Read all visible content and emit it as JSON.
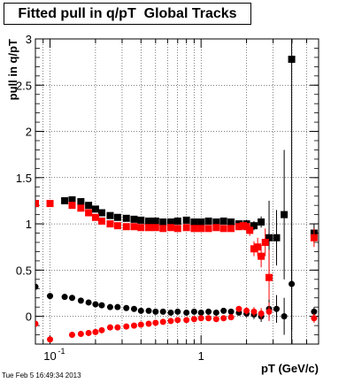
{
  "title": "Fitted pull in q/pT  Global Tracks",
  "footer": "Tue Feb  5 16:49:34 2013",
  "chart_data": {
    "type": "scatter",
    "xlabel": "pT (GeV/c)",
    "ylabel": "pull in q/pT",
    "xscale": "log",
    "xlim": [
      0.08,
      6.0
    ],
    "ylim": [
      -0.3,
      3.0
    ],
    "grid": true,
    "x_tick_labels": [
      {
        "value": 0.1,
        "label": "10",
        "sup": "-1"
      },
      {
        "value": 1,
        "label": "1"
      }
    ],
    "y_tick_labels": [
      "0",
      "0.5",
      "1",
      "1.5",
      "2",
      "2.5",
      "3"
    ],
    "series": [
      {
        "color": "#000000",
        "marker": "square",
        "x": [
          0.08,
          0.125,
          0.14,
          0.16,
          0.18,
          0.2,
          0.22,
          0.25,
          0.28,
          0.32,
          0.36,
          0.4,
          0.45,
          0.5,
          0.56,
          0.63,
          0.7,
          0.8,
          0.9,
          1.0,
          1.12,
          1.26,
          1.41,
          1.58,
          1.78,
          2.0,
          2.24,
          2.5,
          2.82,
          3.16,
          3.55,
          3.98,
          5.6
        ],
        "y": [
          1.22,
          1.25,
          1.26,
          1.24,
          1.2,
          1.16,
          1.12,
          1.09,
          1.07,
          1.06,
          1.05,
          1.04,
          1.03,
          1.03,
          1.02,
          1.02,
          1.03,
          1.04,
          1.02,
          1.02,
          1.03,
          1.02,
          1.03,
          1.02,
          1.0,
          1.0,
          0.98,
          1.02,
          0.85,
          0.85,
          1.1,
          2.78,
          0.9
        ],
        "yerr": [
          0.02,
          0.01,
          0.01,
          0.01,
          0.01,
          0.01,
          0.01,
          0.01,
          0.01,
          0.01,
          0.01,
          0.01,
          0.01,
          0.01,
          0.01,
          0.01,
          0.01,
          0.01,
          0.01,
          0.01,
          0.02,
          0.02,
          0.02,
          0.02,
          0.03,
          0.04,
          0.05,
          0.06,
          0.4,
          0.3,
          0.7,
          3.5,
          0.1
        ]
      },
      {
        "color": "#ff0000",
        "marker": "square",
        "x": [
          0.08,
          0.1,
          0.14,
          0.16,
          0.18,
          0.2,
          0.22,
          0.25,
          0.28,
          0.32,
          0.36,
          0.4,
          0.45,
          0.5,
          0.56,
          0.63,
          0.7,
          0.8,
          0.9,
          1.0,
          1.12,
          1.26,
          1.41,
          1.58,
          1.78,
          1.9,
          2.0,
          2.1,
          2.24,
          2.37,
          2.5,
          2.66,
          2.82,
          5.6
        ],
        "y": [
          1.22,
          1.22,
          1.2,
          1.17,
          1.12,
          1.07,
          1.03,
          1.0,
          0.98,
          0.97,
          0.97,
          0.96,
          0.96,
          0.96,
          0.95,
          0.96,
          0.95,
          0.96,
          0.95,
          0.95,
          0.95,
          0.96,
          0.95,
          0.95,
          0.97,
          0.98,
          0.97,
          0.93,
          0.73,
          0.75,
          0.65,
          0.8,
          0.42,
          0.85
        ],
        "yerr": [
          0.02,
          0.01,
          0.01,
          0.01,
          0.01,
          0.01,
          0.01,
          0.01,
          0.01,
          0.01,
          0.01,
          0.01,
          0.01,
          0.01,
          0.01,
          0.01,
          0.01,
          0.01,
          0.01,
          0.01,
          0.02,
          0.02,
          0.02,
          0.02,
          0.03,
          0.04,
          0.05,
          0.06,
          0.08,
          0.1,
          0.12,
          0.15,
          0.3,
          0.1
        ]
      },
      {
        "color": "#000000",
        "marker": "circle",
        "x": [
          0.08,
          0.1,
          0.125,
          0.14,
          0.16,
          0.18,
          0.2,
          0.22,
          0.25,
          0.28,
          0.32,
          0.36,
          0.4,
          0.45,
          0.5,
          0.56,
          0.63,
          0.7,
          0.8,
          0.9,
          1.0,
          1.12,
          1.26,
          1.41,
          1.58,
          1.78,
          2.0,
          2.24,
          2.5,
          2.82,
          3.16,
          3.55,
          3.98,
          5.6
        ],
        "y": [
          0.32,
          0.22,
          0.21,
          0.2,
          0.17,
          0.15,
          0.13,
          0.12,
          0.1,
          0.1,
          0.09,
          0.08,
          0.06,
          0.06,
          0.05,
          0.05,
          0.04,
          0.05,
          0.04,
          0.05,
          0.04,
          0.05,
          0.04,
          0.06,
          0.05,
          0.04,
          0.03,
          0.02,
          0.0,
          0.08,
          0.08,
          0.0,
          0.35,
          0.05
        ],
        "yerr": [
          0.02,
          0.01,
          0.01,
          0.01,
          0.01,
          0.01,
          0.01,
          0.01,
          0.01,
          0.01,
          0.01,
          0.01,
          0.01,
          0.01,
          0.01,
          0.01,
          0.01,
          0.01,
          0.01,
          0.01,
          0.02,
          0.02,
          0.02,
          0.02,
          0.02,
          0.03,
          0.04,
          0.05,
          0.06,
          0.1,
          0.15,
          0.2,
          0.5,
          0.05
        ]
      },
      {
        "color": "#ff0000",
        "marker": "circle",
        "x": [
          0.08,
          0.1,
          0.14,
          0.16,
          0.18,
          0.2,
          0.22,
          0.25,
          0.28,
          0.32,
          0.36,
          0.4,
          0.45,
          0.5,
          0.56,
          0.63,
          0.7,
          0.8,
          0.9,
          1.0,
          1.12,
          1.26,
          1.41,
          1.58,
          1.78,
          2.0,
          2.24,
          2.5,
          2.82,
          5.6
        ],
        "y": [
          -0.08,
          -0.25,
          -0.2,
          -0.19,
          -0.18,
          -0.17,
          -0.15,
          -0.12,
          -0.12,
          -0.11,
          -0.1,
          -0.09,
          -0.08,
          -0.07,
          -0.06,
          -0.05,
          -0.04,
          -0.04,
          -0.03,
          -0.02,
          -0.02,
          -0.03,
          -0.02,
          -0.01,
          0.08,
          0.06,
          0.05,
          0.03,
          0.05,
          -0.02
        ],
        "yerr": [
          0.02,
          0.01,
          0.01,
          0.01,
          0.01,
          0.01,
          0.01,
          0.01,
          0.01,
          0.01,
          0.01,
          0.01,
          0.01,
          0.01,
          0.01,
          0.01,
          0.01,
          0.01,
          0.01,
          0.01,
          0.02,
          0.02,
          0.02,
          0.02,
          0.03,
          0.04,
          0.05,
          0.06,
          0.1,
          0.05
        ]
      }
    ]
  }
}
